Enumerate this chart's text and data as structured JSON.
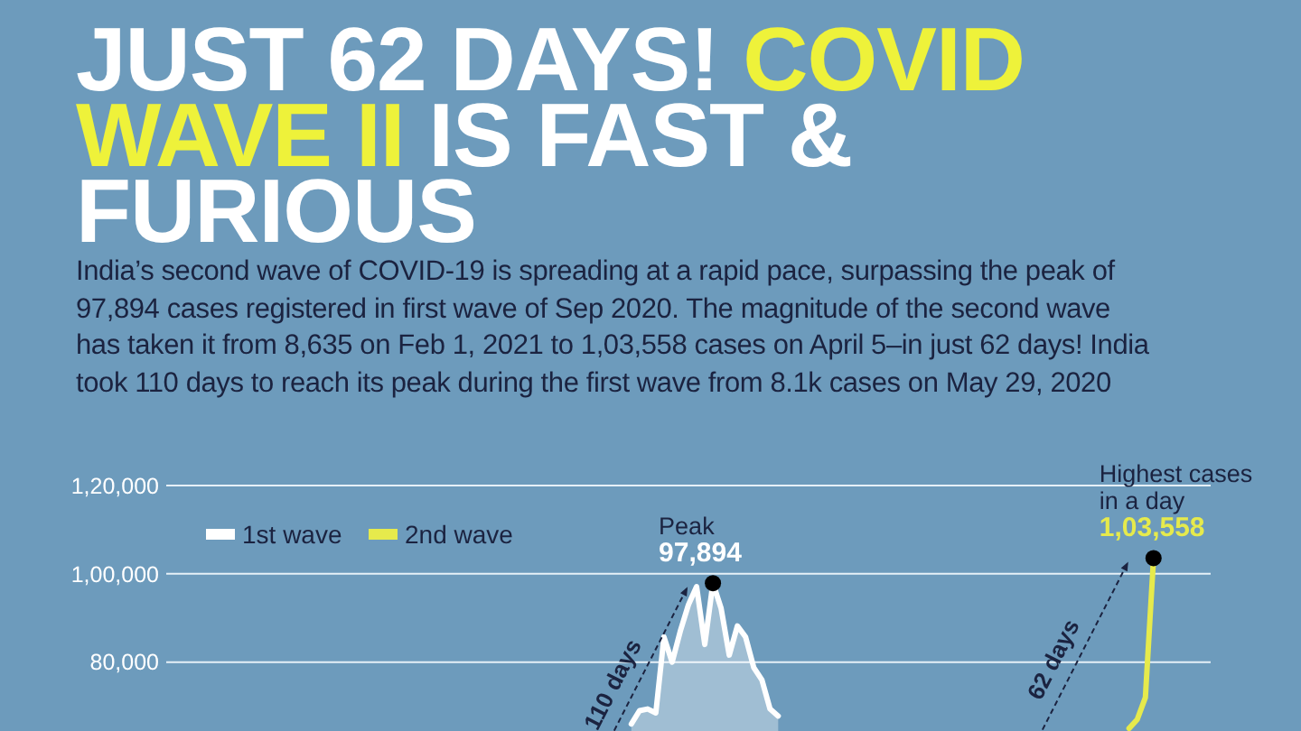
{
  "chart_data": {
    "type": "line",
    "title": "JUST 62 DAYS! COVID WAVE II IS FAST & FURIOUS",
    "subtitle": "India’s second wave of COVID-19 is spreading at a rapid pace, surpassing the peak of 97,894 cases registered in first wave of Sep 2020. The magnitude of the second wave has taken it from 8,635 on Feb 1, 2021 to 1,03,558 cases on April 5–in just 62 days! India took 110 days to reach its peak during the first wave from 8.1k cases on May 29, 2020",
    "categories": [
      null,
      null,
      null,
      null,
      null,
      null,
      null,
      null,
      null,
      null,
      null,
      null,
      null,
      null,
      null,
      null,
      null,
      null,
      null,
      null,
      null,
      null,
      null,
      null,
      null,
      null,
      null,
      null,
      null,
      null,
      null,
      null,
      null,
      null,
      null,
      null,
      null,
      null,
      null,
      null,
      null,
      null,
      null,
      null,
      null,
      null,
      null,
      null,
      null,
      null,
      null,
      null,
      null,
      null,
      null,
      null,
      null,
      null,
      null,
      null,
      null,
      null,
      null,
      null,
      null,
      null,
      null,
      null,
      null,
      null,
      null,
      null,
      null,
      null,
      null,
      null,
      null,
      null,
      null,
      null,
      null,
      null,
      null,
      null,
      null,
      null,
      null,
      null,
      null,
      null,
      null,
      null,
      null,
      null,
      null,
      null,
      null,
      null,
      null,
      null,
      null,
      null,
      null,
      null,
      null,
      null,
      null,
      null,
      null,
      null,
      null,
      null,
      null,
      null,
      null,
      null,
      null,
      null,
      null,
      null,
      null,
      null,
      null,
      null,
      null,
      null,
      null,
      null,
      null
    ],
    "ylim": [
      64000,
      120000
    ],
    "yticks": [
      {
        "value": 80000,
        "label": "80,000"
      },
      {
        "value": 100000,
        "label": "1,00,000"
      },
      {
        "value": 120000,
        "label": "1,20,000"
      }
    ],
    "tick_labels": "y",
    "grid": "y",
    "legend": "top left",
    "series": [
      {
        "name": "1st wave",
        "type": "area",
        "color": "#ffffff",
        "values": [
          null,
          null,
          null,
          null,
          null,
          null,
          null,
          null,
          null,
          null,
          null,
          null,
          null,
          null,
          null,
          null,
          null,
          null,
          null,
          null,
          null,
          null,
          null,
          null,
          null,
          null,
          null,
          null,
          null,
          null,
          null,
          null,
          null,
          null,
          null,
          null,
          null,
          null,
          null,
          null,
          null,
          null,
          null,
          null,
          null,
          null,
          null,
          null,
          null,
          null,
          null,
          null,
          null,
          null,
          null,
          null,
          null,
          66000,
          69000,
          69400,
          68500,
          85700,
          80000,
          87000,
          93000,
          97100,
          84000,
          97894,
          92200,
          81600,
          88200,
          85700,
          78800,
          76000,
          69400,
          67800,
          null,
          null,
          null,
          null,
          null,
          null,
          null,
          null,
          null,
          null,
          null,
          null,
          null,
          null,
          null,
          null,
          null,
          null,
          null,
          null,
          null,
          null,
          null,
          null,
          null,
          null,
          null,
          null,
          null,
          null,
          null,
          null,
          null,
          null,
          null,
          null,
          null,
          null,
          null,
          null,
          null,
          null,
          null,
          null,
          null,
          null,
          null,
          null,
          null,
          null,
          null,
          null,
          null
        ]
      },
      {
        "name": "2nd wave",
        "color": "#e6ea4c",
        "values": [
          null,
          null,
          null,
          null,
          null,
          null,
          null,
          null,
          null,
          null,
          null,
          null,
          null,
          null,
          null,
          null,
          null,
          null,
          null,
          null,
          null,
          null,
          null,
          null,
          null,
          null,
          null,
          null,
          null,
          null,
          null,
          null,
          null,
          null,
          null,
          null,
          null,
          null,
          null,
          null,
          null,
          null,
          null,
          null,
          null,
          null,
          null,
          null,
          null,
          null,
          null,
          null,
          null,
          null,
          null,
          null,
          null,
          null,
          null,
          null,
          null,
          null,
          null,
          null,
          null,
          null,
          null,
          null,
          null,
          null,
          null,
          null,
          null,
          null,
          null,
          null,
          null,
          null,
          null,
          null,
          null,
          null,
          null,
          null,
          null,
          null,
          null,
          null,
          null,
          null,
          null,
          null,
          null,
          null,
          null,
          null,
          null,
          null,
          null,
          null,
          null,
          null,
          null,
          null,
          null,
          null,
          null,
          null,
          null,
          null,
          null,
          null,
          null,
          null,
          null,
          null,
          null,
          null,
          65000,
          67000,
          72000,
          103558,
          null,
          null,
          null,
          null,
          null,
          null,
          null
        ]
      },
      {
        "type": "scatter",
        "color": "#000000",
        "values": [
          null,
          null,
          null,
          null,
          null,
          null,
          null,
          null,
          null,
          null,
          null,
          null,
          null,
          null,
          null,
          null,
          null,
          null,
          null,
          null,
          null,
          null,
          null,
          null,
          null,
          null,
          null,
          null,
          null,
          null,
          null,
          null,
          null,
          null,
          null,
          null,
          null,
          null,
          null,
          null,
          null,
          null,
          null,
          null,
          null,
          null,
          null,
          null,
          null,
          null,
          null,
          null,
          null,
          null,
          null,
          null,
          null,
          null,
          null,
          null,
          null,
          null,
          null,
          null,
          null,
          null,
          null,
          97894,
          null,
          null,
          null,
          null,
          null,
          null,
          null,
          null,
          null,
          null,
          null,
          null,
          null,
          null,
          null,
          null,
          null,
          null,
          null,
          null,
          null,
          null,
          null,
          null,
          null,
          null,
          null,
          null,
          null,
          null,
          null,
          null,
          null,
          null,
          null,
          null,
          null,
          null,
          null,
          null,
          null,
          null,
          null,
          null,
          null,
          null,
          null,
          null,
          null,
          null,
          null,
          null,
          null,
          103558,
          null,
          null,
          null,
          null,
          null,
          null,
          null
        ]
      }
    ],
    "annotations": [
      "110 days",
      "Peak",
      "97,894",
      "62 days",
      "Highest cases in a day",
      "1,03,558"
    ]
  }
}
